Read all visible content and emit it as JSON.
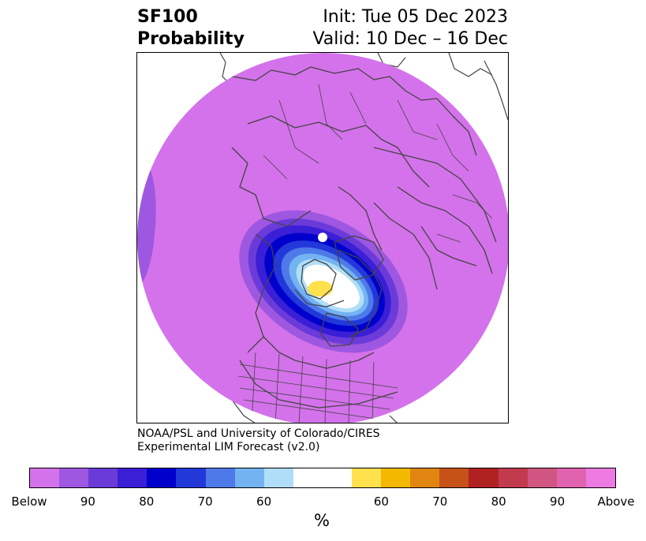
{
  "header": {
    "variable": "SF100",
    "product": "Probability",
    "init": "Init: Tue 05 Dec 2023",
    "valid": "Valid: 10 Dec – 16 Dec"
  },
  "credits": {
    "line1": "NOAA/PSL and University of Colorado/CIRES",
    "line2": "Experimental LIM Forecast (v2.0)"
  },
  "colorbar": {
    "unit": "%",
    "colors": [
      "#d472eb",
      "#9e57e0",
      "#6b3bd9",
      "#3a1fd6",
      "#0000cc",
      "#2238d9",
      "#4d7ae8",
      "#73b3f2",
      "#b0def9",
      "#ffffff",
      "#ffffff",
      "#ffe04d",
      "#f5b800",
      "#e0850f",
      "#c75218",
      "#b02222",
      "#c23a4d",
      "#d05580",
      "#e063b0",
      "#ec7ae0"
    ],
    "tick_labels": [
      "Below",
      "90",
      "80",
      "70",
      "60",
      "60",
      "70",
      "80",
      "90",
      "Above"
    ]
  },
  "map": {
    "background_color": "#d472eb",
    "anomaly_colors": [
      "#9e57e0",
      "#0000cc",
      "#b0def9",
      "#ffffff",
      "#ffe04d"
    ]
  }
}
